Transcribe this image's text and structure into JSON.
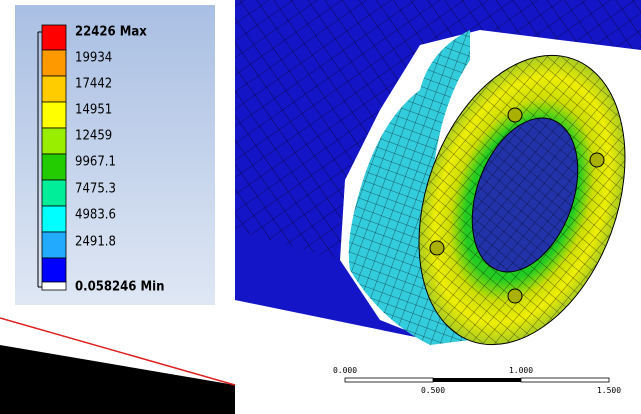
{
  "legend": {
    "labels": [
      "22426 Max",
      "19934",
      "17442",
      "14951",
      "12459",
      "9967.1",
      "7475.3",
      "4983.6",
      "2491.8",
      "0.058246 Min"
    ]
  },
  "scale_bar": {
    "top_labels": [
      "0.000",
      "1.000"
    ],
    "bottom_labels": [
      "0.500",
      "1.500"
    ]
  }
}
